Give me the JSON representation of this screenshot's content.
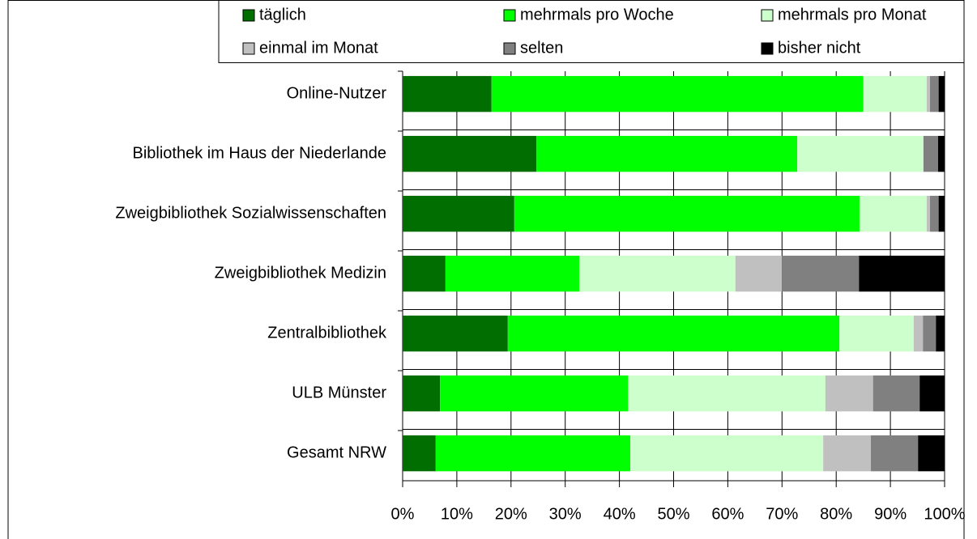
{
  "chart_data": {
    "type": "stacked-bar-horizontal",
    "categories": [
      "Online-Nutzer",
      "Bibliothek im Haus der Niederlande",
      "Zweigbibliothek Sozialwissenschaften",
      "Zweigbibliothek Medizin",
      "Zentralbibliothek",
      "ULB Münster",
      "Gesamt NRW"
    ],
    "series": [
      {
        "name": "täglich",
        "color": "#006e00",
        "values": [
          16.4,
          24.7,
          20.6,
          7.9,
          19.4,
          6.9,
          6.1
        ]
      },
      {
        "name": "mehrmals pro Woche",
        "color": "#00ff00",
        "values": [
          68.6,
          48.1,
          63.7,
          24.7,
          61.2,
          34.7,
          35.9
        ]
      },
      {
        "name": "mehrmals pro Monat",
        "color": "#ccffcc",
        "values": [
          11.7,
          23.3,
          12.4,
          28.8,
          13.7,
          36.4,
          35.6
        ]
      },
      {
        "name": "einmal im Monat",
        "color": "#c0c0c0",
        "values": [
          0.6,
          0,
          0.6,
          8.6,
          1.7,
          8.8,
          8.8
        ]
      },
      {
        "name": "selten",
        "color": "#808080",
        "values": [
          1.6,
          2.7,
          1.6,
          14.2,
          2.4,
          8.6,
          8.7
        ]
      },
      {
        "name": "bisher nicht",
        "color": "#000000",
        "values": [
          1.1,
          1.2,
          1.1,
          15.8,
          1.6,
          4.6,
          4.9
        ]
      }
    ],
    "xlim": [
      0,
      100
    ],
    "xticks": [
      {
        "value": 0,
        "label": "0%"
      },
      {
        "value": 10,
        "label": "10%"
      },
      {
        "value": 20,
        "label": "20%"
      },
      {
        "value": 30,
        "label": "30%"
      },
      {
        "value": 40,
        "label": "40%"
      },
      {
        "value": 50,
        "label": "50%"
      },
      {
        "value": 60,
        "label": "60%"
      },
      {
        "value": 70,
        "label": "70%"
      },
      {
        "value": 80,
        "label": "80%"
      },
      {
        "value": 90,
        "label": "90%"
      },
      {
        "value": 100,
        "label": "100%"
      }
    ],
    "grid": true,
    "legend": "top"
  }
}
